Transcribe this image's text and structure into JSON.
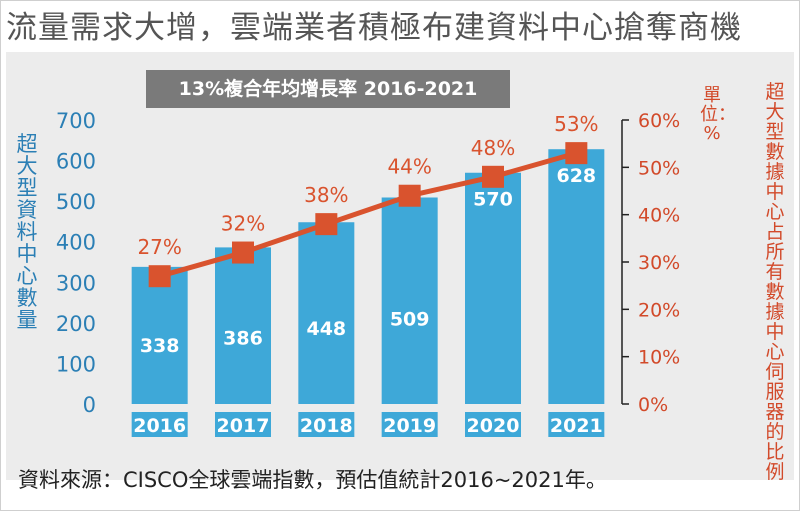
{
  "headline": "流量需求大增，雲端業者積極布建資料中心搶奪商機",
  "growth_banner": "13%複合年均增長率 2016-2021",
  "source_note": "資料來源：CISCO全球雲端指數，預估值統計2016~2021年。",
  "colors": {
    "bar": "#3ea8d8",
    "line": "#d9532e",
    "left_axis": "#2b7fb5",
    "right_axis": "#d24a2a",
    "panel": "#ececec",
    "banner": "#7a7a7a"
  },
  "chart_data": {
    "type": "bar",
    "categories": [
      "2016",
      "2017",
      "2018",
      "2019",
      "2020",
      "2021"
    ],
    "series": [
      {
        "name": "超大型資料中心數量",
        "type": "bar",
        "axis": "left",
        "values": [
          338,
          386,
          448,
          509,
          570,
          628
        ]
      },
      {
        "name": "超大型數據中心占所有數據中心伺服器的比例",
        "type": "line",
        "axis": "right",
        "values": [
          27,
          32,
          38,
          44,
          48,
          53
        ],
        "labels": [
          "27%",
          "32%",
          "38%",
          "44%",
          "48%",
          "53%"
        ]
      }
    ],
    "ylabel": "超大型資料中心數量",
    "ylim": [
      0,
      700
    ],
    "yticks": [
      "0",
      "100",
      "200",
      "300",
      "400",
      "500",
      "600",
      "700"
    ],
    "y2label": "超大型數據中心占所有數據中心伺服器的比例",
    "y2unit": "單位：%",
    "y2lim": [
      0,
      60
    ],
    "y2ticks": [
      "0%",
      "10%",
      "20%",
      "30%",
      "40%",
      "50%",
      "60%"
    ]
  }
}
